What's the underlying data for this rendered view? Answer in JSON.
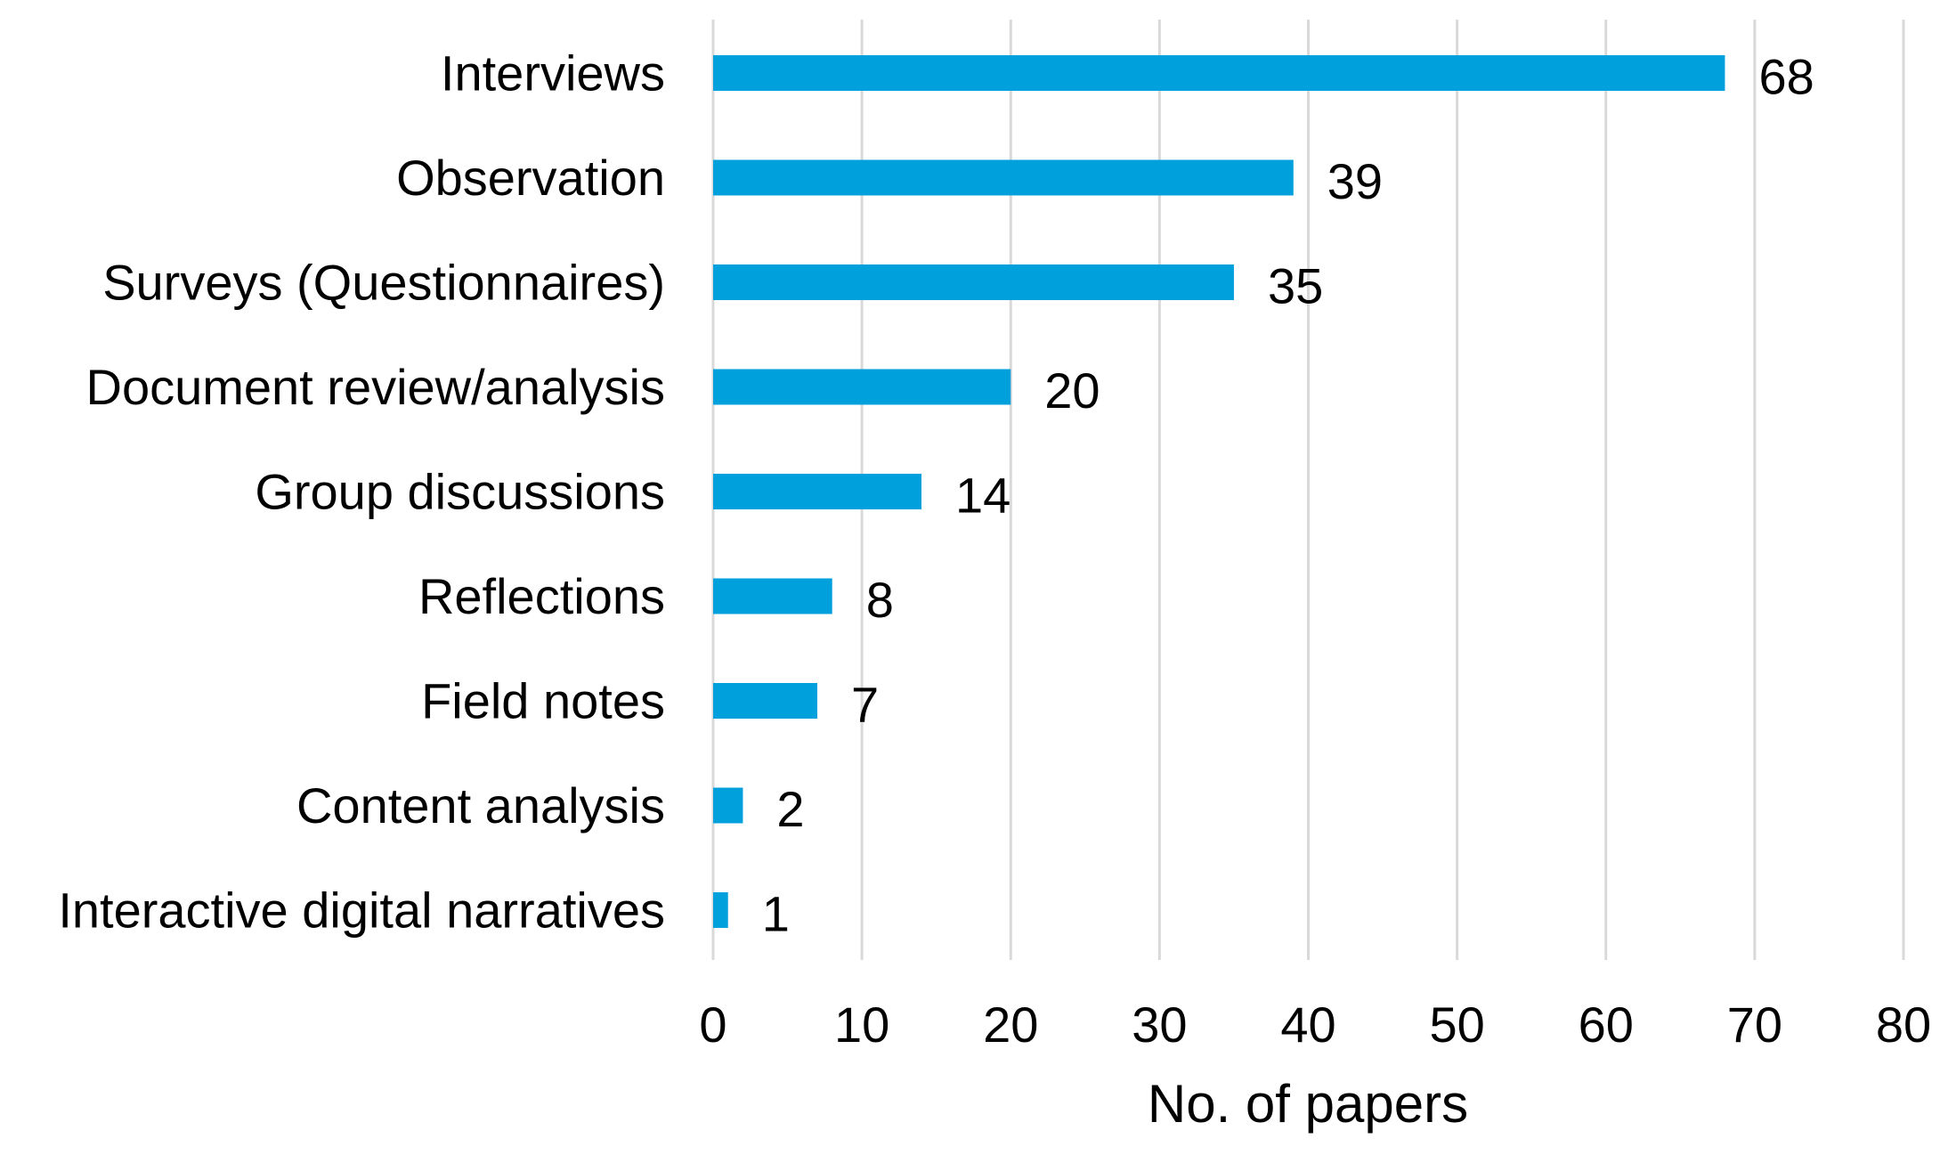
{
  "chart_data": {
    "type": "bar",
    "orientation": "horizontal",
    "categories": [
      "Interviews",
      "Observation",
      "Surveys (Questionnaires)",
      "Document review/analysis",
      "Group discussions",
      "Reflections",
      "Field notes",
      "Content analysis",
      "Interactive digital narratives"
    ],
    "values": [
      68,
      39,
      35,
      20,
      14,
      8,
      7,
      2,
      1
    ],
    "value_labels": [
      "68",
      "39",
      "35",
      "20",
      "14",
      "8",
      "7",
      "2",
      "1"
    ],
    "xlabel": "No. of papers",
    "xlim": [
      0,
      80
    ],
    "xticks": [
      0,
      10,
      20,
      30,
      40,
      50,
      60,
      70,
      80
    ],
    "xtick_labels": [
      "0",
      "10",
      "20",
      "30",
      "40",
      "50",
      "60",
      "70",
      "80"
    ],
    "grid": "vertical",
    "bar_color": "#00a0dc",
    "grid_color": "#d9d9d9"
  }
}
